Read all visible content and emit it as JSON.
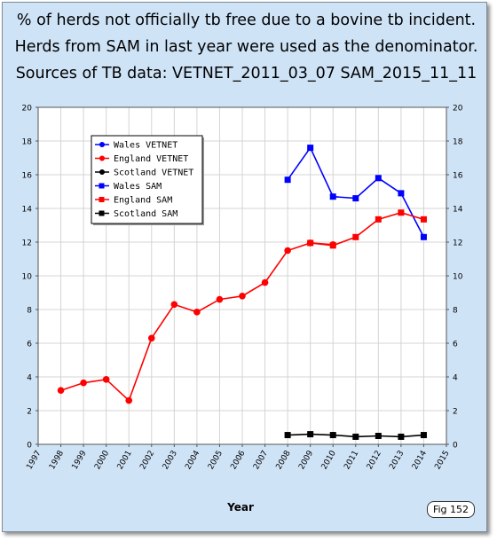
{
  "title_lines": [
    "% of herds not officially tb free due to a bovine tb incident.",
    "Herds from SAM in last year were used as the denominator.",
    "Sources of TB data: VETNET_2011_03_07 SAM_2015_11_11"
  ],
  "fig_label": "Fig 152",
  "chart_data": {
    "type": "line",
    "title": "% of herds not officially tb free due to a bovine tb incident. Herds from SAM in last year were used as the denominator. Sources of TB data: VETNET_2011_03_07 SAM_2015_11_11",
    "xlabel": "Year",
    "ylabel": "",
    "xlim": [
      1997,
      2015
    ],
    "ylim": [
      0,
      20
    ],
    "x_ticks": [
      "1997",
      "1998",
      "1999",
      "2000",
      "2001",
      "2002",
      "2003",
      "2004",
      "2005",
      "2006",
      "2007",
      "2008",
      "2009",
      "2010",
      "2011",
      "2012",
      "2013",
      "2014",
      "2015"
    ],
    "y_ticks": [
      "0",
      "2",
      "4",
      "6",
      "8",
      "10",
      "12",
      "14",
      "16",
      "18",
      "20"
    ],
    "grid": true,
    "legend_position": "top-left",
    "series": [
      {
        "name": "Wales VETNET",
        "color": "#0000ff",
        "marker": "circle",
        "x": [],
        "y": []
      },
      {
        "name": "England VETNET",
        "color": "#ff0000",
        "marker": "circle",
        "x": [
          1998,
          1999,
          2000,
          2001,
          2002,
          2003,
          2004,
          2005,
          2006,
          2007,
          2008,
          2009,
          2010
        ],
        "y": [
          3.2,
          3.65,
          3.85,
          2.6,
          6.3,
          8.3,
          7.85,
          8.6,
          8.8,
          9.6,
          11.5,
          11.95,
          11.85
        ]
      },
      {
        "name": "Scotland VETNET",
        "color": "#000000",
        "marker": "circle",
        "x": [],
        "y": []
      },
      {
        "name": "Wales SAM",
        "color": "#0000ff",
        "marker": "square",
        "x": [
          2008,
          2009,
          2010,
          2011,
          2012,
          2013,
          2014
        ],
        "y": [
          15.7,
          17.6,
          14.7,
          14.6,
          15.8,
          14.9,
          12.3
        ]
      },
      {
        "name": "England SAM",
        "color": "#ff0000",
        "marker": "square",
        "x": [
          2009,
          2010,
          2011,
          2012,
          2013,
          2014
        ],
        "y": [
          11.95,
          11.8,
          12.3,
          13.35,
          13.75,
          13.35
        ]
      },
      {
        "name": "Scotland SAM",
        "color": "#000000",
        "marker": "square",
        "x": [
          2008,
          2009,
          2010,
          2011,
          2012,
          2013,
          2014
        ],
        "y": [
          0.55,
          0.6,
          0.55,
          0.45,
          0.5,
          0.45,
          0.55
        ]
      }
    ]
  }
}
